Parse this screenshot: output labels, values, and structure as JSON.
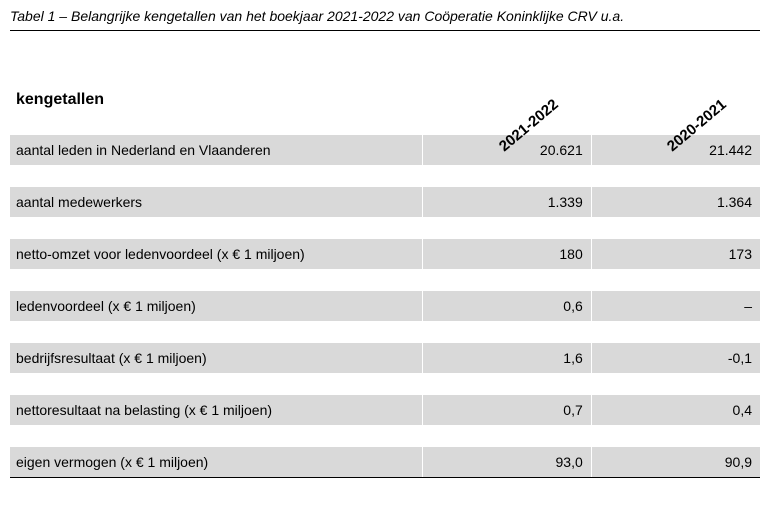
{
  "caption": "Tabel 1 – Belangrijke kengetallen van het boekjaar 2021-2022 van Coöperatie Koninklijke CRV u.a.",
  "header": {
    "label": "kengetallen",
    "col1": "2021-2022",
    "col2": "2020-2021"
  },
  "rows": [
    {
      "label": "aantal leden in Nederland en Vlaanderen",
      "v1": "20.621",
      "v2": "21.442"
    },
    {
      "label": "aantal medewerkers",
      "v1": "1.339",
      "v2": "1.364"
    },
    {
      "label": "netto-omzet voor ledenvoordeel  (x € 1 miljoen)",
      "v1": "180",
      "v2": "173"
    },
    {
      "label": "ledenvoordeel (x € 1 miljoen)",
      "v1": "0,6",
      "v2": "–"
    },
    {
      "label": "bedrijfsresultaat (x € 1 miljoen)",
      "v1": "1,6",
      "v2": "-0,1"
    },
    {
      "label": "nettoresultaat na belasting (x € 1 miljoen)",
      "v1": "0,7",
      "v2": "0,4"
    },
    {
      "label": "eigen vermogen (x € 1 miljoen)",
      "v1": "93,0",
      "v2": "90,9"
    }
  ],
  "style": {
    "row_bg": "#d9d9d9",
    "caption_fontsize": 14,
    "header_fontsize": 16,
    "cell_fontsize": 14,
    "rotation_deg": -40
  }
}
